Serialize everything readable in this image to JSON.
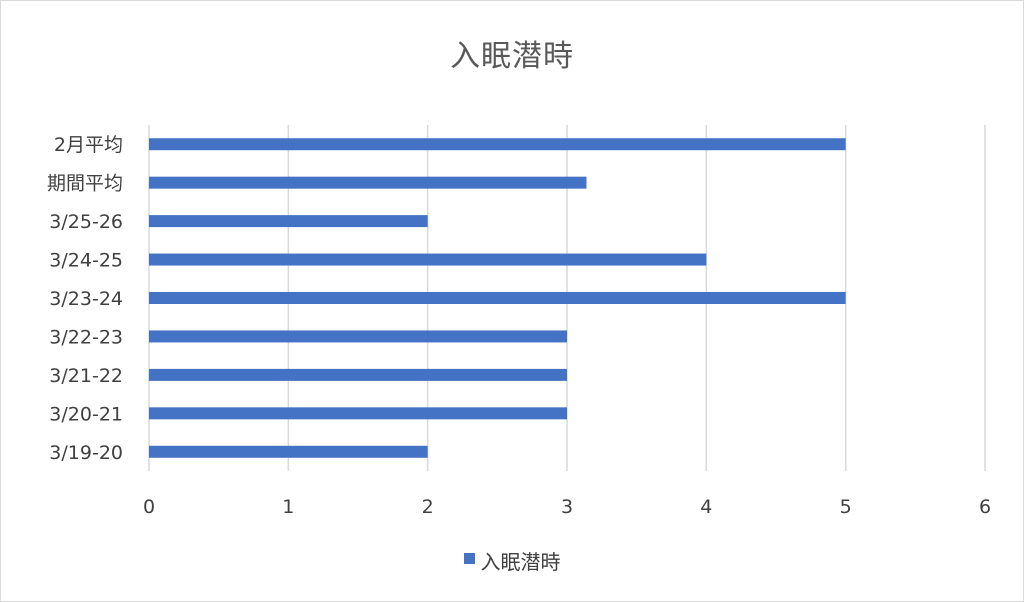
{
  "chart_data": {
    "type": "bar",
    "orientation": "horizontal",
    "title": "入眠潜時",
    "categories": [
      "3/19-20",
      "3/20-21",
      "3/21-22",
      "3/22-23",
      "3/23-24",
      "3/24-25",
      "3/25-26",
      "期間平均",
      "2月平均"
    ],
    "series": [
      {
        "name": "入眠潜時",
        "values": [
          2,
          3,
          3,
          3,
          5,
          4,
          2,
          3.14,
          5
        ],
        "color": "#4472c4"
      }
    ],
    "xlim": [
      0,
      6
    ],
    "x_ticks": [
      "0",
      "1",
      "2",
      "3",
      "4",
      "5",
      "6"
    ],
    "grid": true,
    "legend_position": "bottom"
  }
}
